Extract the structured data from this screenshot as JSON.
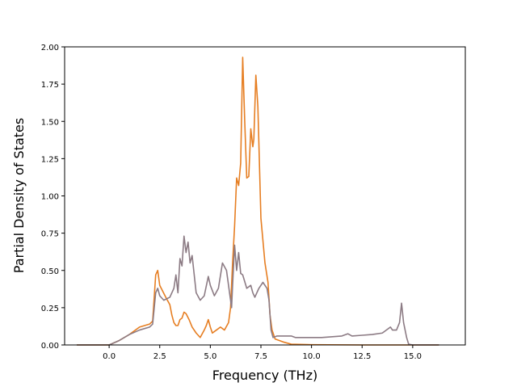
{
  "chart_data": {
    "type": "line",
    "title": "",
    "xlabel": "Frequency (THz)",
    "ylabel": "Partial Density of States",
    "xlim": [
      -2.2,
      17.6
    ],
    "ylim": [
      0,
      2.0
    ],
    "x_ticks": [
      0.0,
      2.5,
      5.0,
      7.5,
      10.0,
      12.5,
      15.0
    ],
    "x_tick_labels": [
      "0.0",
      "2.5",
      "5.0",
      "7.5",
      "10.0",
      "12.5",
      "15.0"
    ],
    "y_ticks": [
      0.0,
      0.25,
      0.5,
      0.75,
      1.0,
      1.25,
      1.5,
      1.75,
      2.0
    ],
    "y_tick_labels": [
      "0.00",
      "0.25",
      "0.50",
      "0.75",
      "1.00",
      "1.25",
      "1.50",
      "1.75",
      "2.00"
    ],
    "grid": false,
    "legend": "none",
    "series": [
      {
        "color": "#e67e22",
        "points": [
          [
            -1.6,
            0
          ],
          [
            0.0,
            0
          ],
          [
            0.5,
            0.03
          ],
          [
            1.0,
            0.07
          ],
          [
            1.5,
            0.12
          ],
          [
            2.0,
            0.14
          ],
          [
            2.15,
            0.16
          ],
          [
            2.3,
            0.47
          ],
          [
            2.4,
            0.5
          ],
          [
            2.5,
            0.4
          ],
          [
            2.8,
            0.32
          ],
          [
            3.0,
            0.27
          ],
          [
            3.1,
            0.2
          ],
          [
            3.2,
            0.15
          ],
          [
            3.3,
            0.13
          ],
          [
            3.4,
            0.13
          ],
          [
            3.5,
            0.17
          ],
          [
            3.6,
            0.18
          ],
          [
            3.7,
            0.22
          ],
          [
            3.8,
            0.21
          ],
          [
            3.95,
            0.17
          ],
          [
            4.1,
            0.12
          ],
          [
            4.3,
            0.08
          ],
          [
            4.5,
            0.05
          ],
          [
            4.7,
            0.1
          ],
          [
            4.8,
            0.13
          ],
          [
            4.9,
            0.17
          ],
          [
            5.0,
            0.12
          ],
          [
            5.1,
            0.08
          ],
          [
            5.3,
            0.1
          ],
          [
            5.5,
            0.12
          ],
          [
            5.7,
            0.1
          ],
          [
            5.9,
            0.15
          ],
          [
            6.0,
            0.25
          ],
          [
            6.1,
            0.55
          ],
          [
            6.2,
            0.8
          ],
          [
            6.3,
            1.12
          ],
          [
            6.4,
            1.07
          ],
          [
            6.5,
            1.22
          ],
          [
            6.6,
            1.93
          ],
          [
            6.7,
            1.5
          ],
          [
            6.8,
            1.12
          ],
          [
            6.9,
            1.13
          ],
          [
            7.0,
            1.45
          ],
          [
            7.1,
            1.33
          ],
          [
            7.15,
            1.38
          ],
          [
            7.25,
            1.81
          ],
          [
            7.35,
            1.6
          ],
          [
            7.5,
            0.85
          ],
          [
            7.7,
            0.55
          ],
          [
            7.85,
            0.42
          ],
          [
            7.95,
            0.2
          ],
          [
            8.05,
            0.1
          ],
          [
            8.2,
            0.04
          ],
          [
            8.6,
            0.02
          ],
          [
            9.0,
            0.005
          ],
          [
            10.0,
            0.002
          ],
          [
            12.5,
            0.0
          ],
          [
            14.5,
            0.0
          ],
          [
            15.0,
            0.0
          ],
          [
            16.3,
            0
          ]
        ]
      },
      {
        "color": "#8c7b84",
        "points": [
          [
            -1.6,
            0
          ],
          [
            0.0,
            0
          ],
          [
            0.5,
            0.03
          ],
          [
            1.0,
            0.07
          ],
          [
            1.5,
            0.1
          ],
          [
            2.0,
            0.12
          ],
          [
            2.15,
            0.14
          ],
          [
            2.3,
            0.35
          ],
          [
            2.4,
            0.38
          ],
          [
            2.5,
            0.33
          ],
          [
            2.7,
            0.3
          ],
          [
            3.0,
            0.32
          ],
          [
            3.2,
            0.38
          ],
          [
            3.3,
            0.47
          ],
          [
            3.4,
            0.35
          ],
          [
            3.5,
            0.58
          ],
          [
            3.6,
            0.53
          ],
          [
            3.7,
            0.73
          ],
          [
            3.8,
            0.62
          ],
          [
            3.9,
            0.69
          ],
          [
            4.0,
            0.55
          ],
          [
            4.1,
            0.6
          ],
          [
            4.3,
            0.35
          ],
          [
            4.5,
            0.3
          ],
          [
            4.7,
            0.33
          ],
          [
            4.9,
            0.46
          ],
          [
            5.0,
            0.4
          ],
          [
            5.2,
            0.33
          ],
          [
            5.4,
            0.38
          ],
          [
            5.6,
            0.55
          ],
          [
            5.8,
            0.5
          ],
          [
            6.0,
            0.3
          ],
          [
            6.05,
            0.25
          ],
          [
            6.1,
            0.4
          ],
          [
            6.2,
            0.67
          ],
          [
            6.3,
            0.5
          ],
          [
            6.4,
            0.62
          ],
          [
            6.5,
            0.48
          ],
          [
            6.6,
            0.47
          ],
          [
            6.8,
            0.38
          ],
          [
            7.0,
            0.4
          ],
          [
            7.1,
            0.35
          ],
          [
            7.2,
            0.32
          ],
          [
            7.4,
            0.38
          ],
          [
            7.6,
            0.42
          ],
          [
            7.8,
            0.38
          ],
          [
            7.9,
            0.3
          ],
          [
            8.0,
            0.1
          ],
          [
            8.1,
            0.05
          ],
          [
            8.3,
            0.06
          ],
          [
            9.0,
            0.06
          ],
          [
            9.2,
            0.05
          ],
          [
            10.0,
            0.05
          ],
          [
            10.5,
            0.05
          ],
          [
            11.5,
            0.06
          ],
          [
            11.8,
            0.075
          ],
          [
            12.0,
            0.06
          ],
          [
            12.5,
            0.065
          ],
          [
            13.0,
            0.07
          ],
          [
            13.5,
            0.08
          ],
          [
            13.9,
            0.12
          ],
          [
            14.0,
            0.1
          ],
          [
            14.2,
            0.1
          ],
          [
            14.35,
            0.15
          ],
          [
            14.45,
            0.28
          ],
          [
            14.55,
            0.15
          ],
          [
            14.7,
            0.05
          ],
          [
            14.8,
            0.005
          ],
          [
            15.0,
            0.0
          ],
          [
            16.3,
            0
          ]
        ]
      }
    ]
  }
}
